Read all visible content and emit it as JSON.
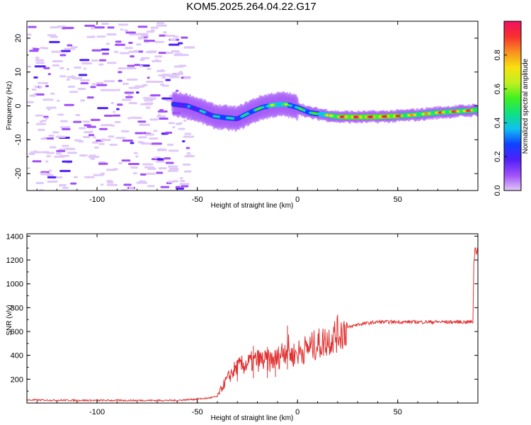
{
  "title": "KOM5.2025.264.04.22.G17",
  "chart_data": [
    {
      "type": "heatmap",
      "xlabel": "Height of straight line (km)",
      "ylabel": "Frequency (Hz)",
      "xlim": [
        -135,
        90
      ],
      "ylim": [
        -25,
        25
      ],
      "xticks": [
        -100,
        -50,
        0,
        50
      ],
      "yticks": [
        -20,
        -10,
        0,
        10,
        20
      ],
      "colorbar": {
        "label": "Normalized spectral amplitude",
        "range": [
          0,
          1
        ],
        "ticks": [
          0.0,
          0.2,
          0.4,
          0.6,
          0.8
        ],
        "colormap": [
          "#e0c8f8",
          "#a050f8",
          "#5020f8",
          "#1040ff",
          "#10c0f0",
          "#10e080",
          "#40f020",
          "#c0f020",
          "#f8e010",
          "#f89020",
          "#f83030",
          "#f01060"
        ]
      },
      "ridge": {
        "x": [
          -62,
          -55,
          -48,
          -42,
          -36,
          -30,
          -24,
          -18,
          -12,
          -6,
          0,
          6,
          12,
          20,
          30,
          40,
          50,
          60,
          70,
          80,
          90
        ],
        "freq": [
          0.5,
          0.0,
          -1.5,
          -3.0,
          -3.5,
          -3.8,
          -2.0,
          -0.5,
          0.3,
          0.5,
          -0.5,
          -2.0,
          -2.5,
          -3.2,
          -3.3,
          -3.2,
          -3.0,
          -2.6,
          -2.0,
          -1.6,
          -1.2
        ],
        "amp": [
          0.3,
          0.3,
          0.4,
          0.4,
          0.45,
          0.4,
          0.45,
          0.55,
          0.6,
          0.6,
          0.5,
          0.5,
          0.6,
          0.9,
          0.95,
          0.95,
          0.92,
          0.75,
          0.85,
          0.9,
          0.9
        ]
      },
      "noise_region_x": [
        -135,
        -55
      ]
    },
    {
      "type": "line",
      "xlabel": "Height of straight line (km)",
      "ylabel": "SNR (v/v)",
      "xlim": [
        -135,
        90
      ],
      "ylim": [
        0,
        1420
      ],
      "xticks": [
        -100,
        -50,
        0,
        50
      ],
      "yticks": [
        200,
        400,
        600,
        800,
        1000,
        1200,
        1400
      ],
      "color": "#e03030",
      "series": {
        "x": [
          -135,
          -100,
          -60,
          -45,
          -40,
          -37,
          -33,
          -30,
          -25,
          -20,
          -15,
          -10,
          -8,
          -5,
          -3,
          0,
          5,
          10,
          15,
          20,
          25,
          30,
          35,
          40,
          50,
          60,
          70,
          80,
          87.5,
          88,
          88.5,
          89,
          89.5,
          90
        ],
        "y": [
          25,
          22,
          22,
          40,
          55,
          150,
          250,
          300,
          330,
          360,
          350,
          370,
          420,
          470,
          400,
          420,
          460,
          490,
          530,
          580,
          630,
          660,
          670,
          680,
          680,
          680,
          680,
          680,
          680,
          1150,
          1330,
          1250,
          1320,
          1290
        ]
      }
    }
  ]
}
